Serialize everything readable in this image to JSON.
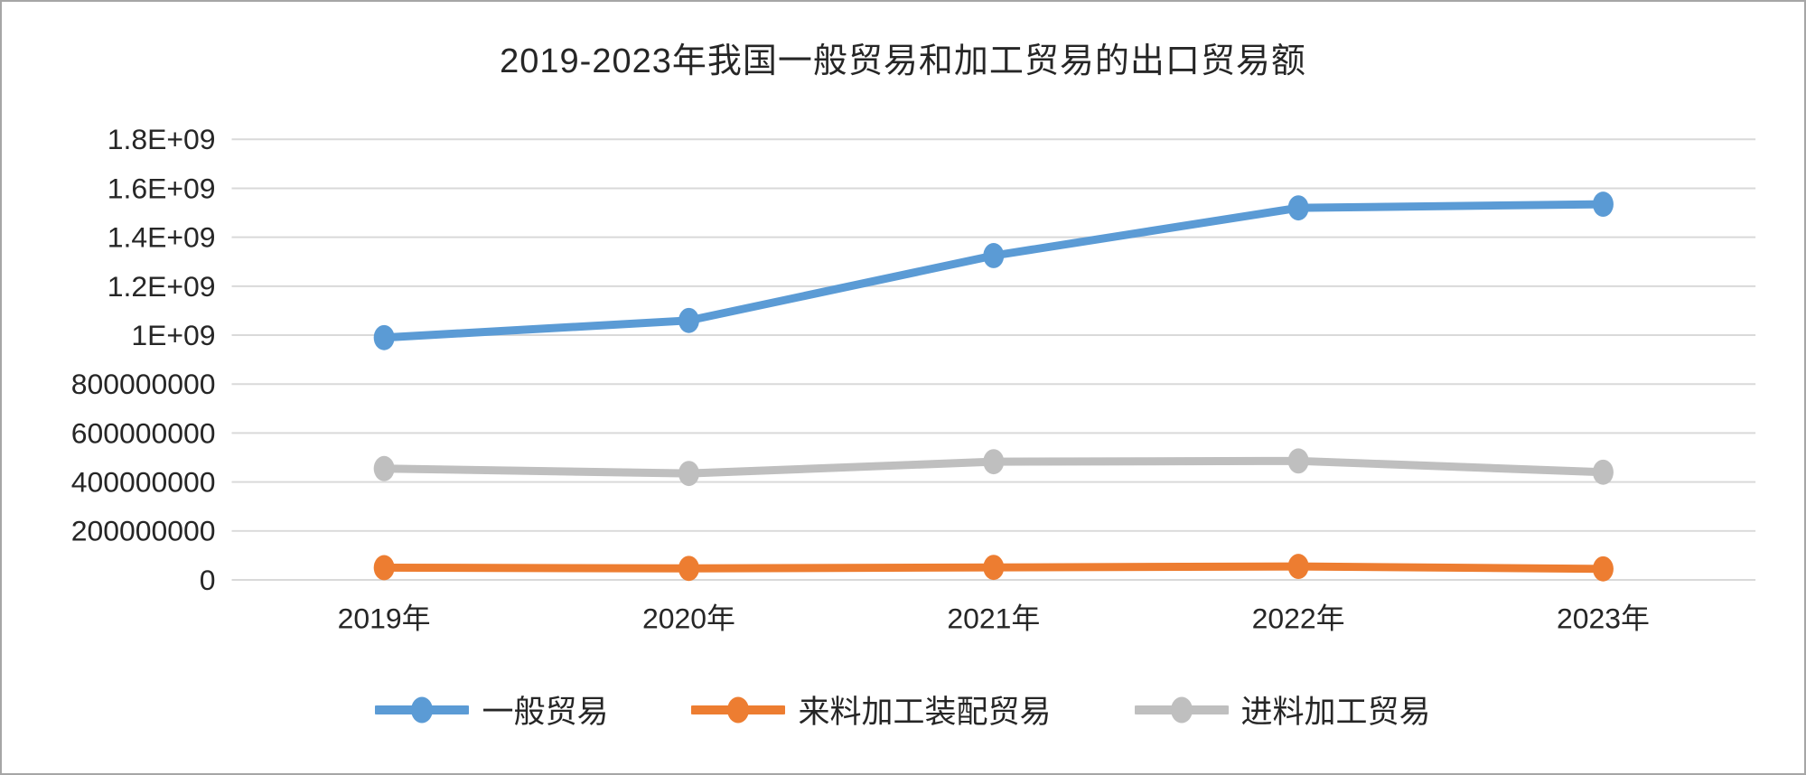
{
  "chart_data": {
    "type": "line",
    "title": "2019-2023年我国一般贸易和加工贸易的出口贸易额",
    "categories": [
      "2019年",
      "2020年",
      "2021年",
      "2022年",
      "2023年"
    ],
    "series": [
      {
        "name": "一般贸易",
        "color": "#5B9BD5",
        "values": [
          990000000,
          1060000000,
          1325000000,
          1520000000,
          1535000000
        ]
      },
      {
        "name": "来料加工装配贸易",
        "color": "#ED7D31",
        "values": [
          50000000,
          47000000,
          51000000,
          55000000,
          45000000
        ]
      },
      {
        "name": "进料加工贸易",
        "color": "#BFBFBF",
        "values": [
          455000000,
          435000000,
          483000000,
          486000000,
          440000000
        ]
      }
    ],
    "y_axis": {
      "min": 0,
      "max": 1800000000,
      "step": 200000000,
      "tick_labels": [
        "0",
        "200000000",
        "400000000",
        "600000000",
        "800000000",
        "1E+09",
        "1.2E+09",
        "1.4E+09",
        "1.6E+09",
        "1.8E+09"
      ]
    },
    "grid": true,
    "gridline_color": "#D9D9D9",
    "legend_position": "bottom"
  }
}
